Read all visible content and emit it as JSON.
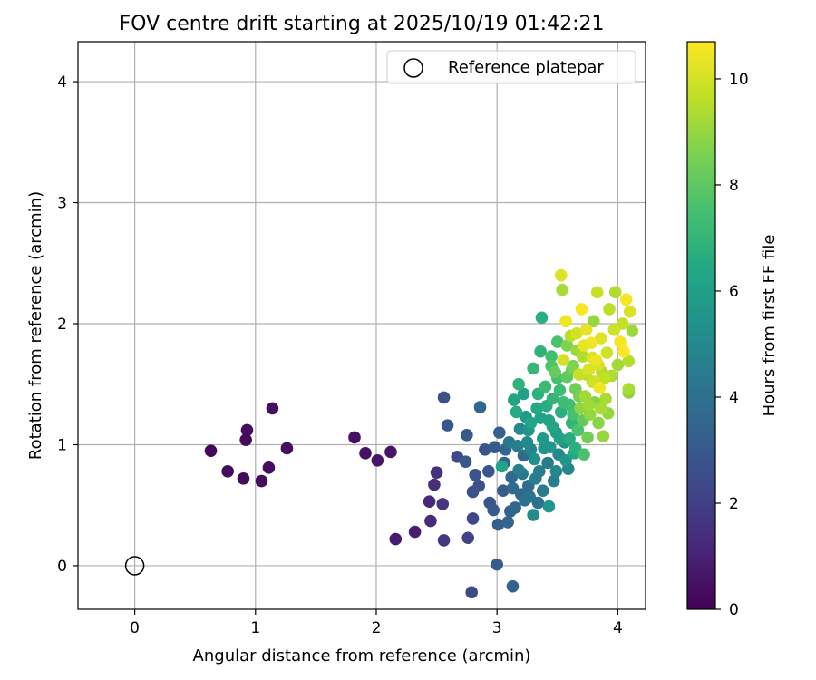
{
  "chart_data": {
    "type": "scatter",
    "title": "FOV centre drift starting at 2025/10/19 01:42:21",
    "xlabel": "Angular distance from reference (arcmin)",
    "ylabel": "Rotation from reference (arcmin)",
    "xlim": [
      -0.47,
      4.23
    ],
    "ylim": [
      -0.36,
      4.33
    ],
    "xticks": [
      0,
      1,
      2,
      3,
      4
    ],
    "yticks": [
      0,
      1,
      2,
      3,
      4
    ],
    "grid": true,
    "legend": {
      "position": "top-right",
      "entries": [
        "Reference platepar"
      ]
    },
    "reference_point": {
      "x": 0,
      "y": 0,
      "label": "Reference platepar"
    },
    "colorbar": {
      "label": "Hours from first FF file",
      "range": [
        0,
        10.7
      ],
      "ticks": [
        0,
        2,
        4,
        6,
        8,
        10
      ],
      "colormap": "viridis"
    },
    "points": [
      {
        "x": 0.63,
        "y": 0.95,
        "c": 0.2
      },
      {
        "x": 0.77,
        "y": 0.78,
        "c": 0.3
      },
      {
        "x": 0.9,
        "y": 0.72,
        "c": 0.3
      },
      {
        "x": 0.92,
        "y": 1.04,
        "c": 0.2
      },
      {
        "x": 0.93,
        "y": 1.12,
        "c": 0.3
      },
      {
        "x": 1.05,
        "y": 0.7,
        "c": 0.3
      },
      {
        "x": 1.11,
        "y": 0.81,
        "c": 0.4
      },
      {
        "x": 1.14,
        "y": 1.3,
        "c": 0.4
      },
      {
        "x": 1.26,
        "y": 0.97,
        "c": 0.4
      },
      {
        "x": 1.82,
        "y": 1.06,
        "c": 0.5
      },
      {
        "x": 1.91,
        "y": 0.93,
        "c": 0.5
      },
      {
        "x": 2.01,
        "y": 0.87,
        "c": 0.6
      },
      {
        "x": 2.12,
        "y": 0.94,
        "c": 0.6
      },
      {
        "x": 2.16,
        "y": 0.22,
        "c": 0.8
      },
      {
        "x": 2.32,
        "y": 0.28,
        "c": 0.9
      },
      {
        "x": 2.44,
        "y": 0.53,
        "c": 1.2
      },
      {
        "x": 2.45,
        "y": 0.37,
        "c": 1.3
      },
      {
        "x": 2.48,
        "y": 0.67,
        "c": 1.4
      },
      {
        "x": 2.5,
        "y": 0.77,
        "c": 1.5
      },
      {
        "x": 2.55,
        "y": 0.51,
        "c": 1.6
      },
      {
        "x": 2.56,
        "y": 0.21,
        "c": 1.7
      },
      {
        "x": 2.56,
        "y": 1.39,
        "c": 2.6
      },
      {
        "x": 2.59,
        "y": 1.16,
        "c": 2.9
      },
      {
        "x": 2.67,
        "y": 0.9,
        "c": 2.4
      },
      {
        "x": 2.76,
        "y": 0.23,
        "c": 2.1
      },
      {
        "x": 2.8,
        "y": 0.39,
        "c": 2.2
      },
      {
        "x": 2.79,
        "y": -0.22,
        "c": 2.3
      },
      {
        "x": 2.86,
        "y": 1.31,
        "c": 3.5
      },
      {
        "x": 3.0,
        "y": 0.01,
        "c": 3.1
      },
      {
        "x": 3.13,
        "y": -0.17,
        "c": 3.3
      },
      {
        "x": 2.8,
        "y": 0.61,
        "c": 2.6
      },
      {
        "x": 2.82,
        "y": 0.75,
        "c": 2.8
      },
      {
        "x": 2.85,
        "y": 0.66,
        "c": 2.7
      },
      {
        "x": 2.74,
        "y": 0.86,
        "c": 2.9
      },
      {
        "x": 2.75,
        "y": 1.08,
        "c": 3.0
      },
      {
        "x": 2.9,
        "y": 0.96,
        "c": 2.8
      },
      {
        "x": 2.94,
        "y": 0.52,
        "c": 2.9
      },
      {
        "x": 2.97,
        "y": 0.46,
        "c": 3.0
      },
      {
        "x": 3.01,
        "y": 0.34,
        "c": 3.2
      },
      {
        "x": 3.05,
        "y": 0.62,
        "c": 3.1
      },
      {
        "x": 3.02,
        "y": 1.1,
        "c": 3.3
      },
      {
        "x": 3.06,
        "y": 0.85,
        "c": 3.4
      },
      {
        "x": 3.09,
        "y": 0.36,
        "c": 3.5
      },
      {
        "x": 3.12,
        "y": 0.73,
        "c": 3.6
      },
      {
        "x": 3.15,
        "y": 0.48,
        "c": 3.5
      },
      {
        "x": 3.2,
        "y": 0.59,
        "c": 3.6
      },
      {
        "x": 3.22,
        "y": 0.91,
        "c": 3.7
      },
      {
        "x": 3.26,
        "y": 0.66,
        "c": 3.8
      },
      {
        "x": 3.3,
        "y": 0.42,
        "c": 5.2
      },
      {
        "x": 3.34,
        "y": 0.52,
        "c": 4.0
      },
      {
        "x": 3.43,
        "y": 0.49,
        "c": 5.5
      },
      {
        "x": 3.04,
        "y": 0.82,
        "c": 6.2
      },
      {
        "x": 3.16,
        "y": 1.27,
        "c": 6.5
      },
      {
        "x": 3.18,
        "y": 1.5,
        "c": 6.9
      },
      {
        "x": 3.22,
        "y": 1.42,
        "c": 6.0
      },
      {
        "x": 3.26,
        "y": 1.12,
        "c": 5.5
      },
      {
        "x": 3.28,
        "y": 0.96,
        "c": 4.8
      },
      {
        "x": 3.3,
        "y": 1.63,
        "c": 7.1
      },
      {
        "x": 3.33,
        "y": 1.3,
        "c": 6.4
      },
      {
        "x": 3.35,
        "y": 0.78,
        "c": 4.6
      },
      {
        "x": 3.36,
        "y": 1.77,
        "c": 6.9
      },
      {
        "x": 3.37,
        "y": 2.05,
        "c": 6.7
      },
      {
        "x": 3.38,
        "y": 1.05,
        "c": 5.8
      },
      {
        "x": 3.4,
        "y": 1.48,
        "c": 7.2
      },
      {
        "x": 3.42,
        "y": 0.85,
        "c": 4.4
      },
      {
        "x": 3.43,
        "y": 1.2,
        "c": 6.2
      },
      {
        "x": 3.45,
        "y": 1.73,
        "c": 7.4
      },
      {
        "x": 3.46,
        "y": 1.38,
        "c": 7.0
      },
      {
        "x": 3.47,
        "y": 0.7,
        "c": 4.5
      },
      {
        "x": 3.48,
        "y": 1.6,
        "c": 8.2
      },
      {
        "x": 3.49,
        "y": 1.1,
        "c": 5.9
      },
      {
        "x": 3.5,
        "y": 1.85,
        "c": 7.6
      },
      {
        "x": 3.51,
        "y": 0.92,
        "c": 5.0
      },
      {
        "x": 3.52,
        "y": 1.45,
        "c": 7.3
      },
      {
        "x": 3.53,
        "y": 1.27,
        "c": 6.7
      },
      {
        "x": 3.53,
        "y": 2.4,
        "c": 10.2
      },
      {
        "x": 3.54,
        "y": 2.28,
        "c": 9.3
      },
      {
        "x": 3.55,
        "y": 1.7,
        "c": 10.0
      },
      {
        "x": 3.56,
        "y": 1.02,
        "c": 5.5
      },
      {
        "x": 3.57,
        "y": 2.02,
        "c": 10.5
      },
      {
        "x": 3.58,
        "y": 1.56,
        "c": 8.0
      },
      {
        "x": 3.59,
        "y": 0.8,
        "c": 4.9
      },
      {
        "x": 3.6,
        "y": 1.33,
        "c": 7.4
      },
      {
        "x": 3.61,
        "y": 1.9,
        "c": 9.6
      },
      {
        "x": 3.62,
        "y": 1.18,
        "c": 7.0
      },
      {
        "x": 3.63,
        "y": 1.65,
        "c": 8.6
      },
      {
        "x": 3.64,
        "y": 0.93,
        "c": 6.4
      },
      {
        "x": 3.65,
        "y": 1.46,
        "c": 8.3
      },
      {
        "x": 3.66,
        "y": 1.78,
        "c": 9.1
      },
      {
        "x": 3.67,
        "y": 1.12,
        "c": 7.6
      },
      {
        "x": 3.68,
        "y": 1.58,
        "c": 9.8
      },
      {
        "x": 3.69,
        "y": 1.3,
        "c": 8.8
      },
      {
        "x": 3.7,
        "y": 2.12,
        "c": 10.6
      },
      {
        "x": 3.71,
        "y": 1.73,
        "c": 9.4
      },
      {
        "x": 3.72,
        "y": 0.92,
        "c": 7.6
      },
      {
        "x": 3.73,
        "y": 1.4,
        "c": 9.2
      },
      {
        "x": 3.74,
        "y": 1.95,
        "c": 10.3
      },
      {
        "x": 3.75,
        "y": 1.06,
        "c": 8.4
      },
      {
        "x": 3.76,
        "y": 1.62,
        "c": 10.1
      },
      {
        "x": 3.77,
        "y": 1.25,
        "c": 9.0
      },
      {
        "x": 3.78,
        "y": 1.84,
        "c": 10.5
      },
      {
        "x": 3.79,
        "y": 1.52,
        "c": 9.7
      },
      {
        "x": 3.8,
        "y": 2.02,
        "c": 9.0
      },
      {
        "x": 3.81,
        "y": 1.35,
        "c": 8.7
      },
      {
        "x": 3.82,
        "y": 1.7,
        "c": 10.4
      },
      {
        "x": 3.83,
        "y": 2.26,
        "c": 9.8
      },
      {
        "x": 3.84,
        "y": 1.18,
        "c": 8.8
      },
      {
        "x": 3.85,
        "y": 1.47,
        "c": 10.5
      },
      {
        "x": 3.86,
        "y": 1.88,
        "c": 10.2
      },
      {
        "x": 3.87,
        "y": 1.6,
        "c": 9.5
      },
      {
        "x": 3.88,
        "y": 1.07,
        "c": 9.0
      },
      {
        "x": 3.9,
        "y": 1.38,
        "c": 9.3
      },
      {
        "x": 3.91,
        "y": 1.76,
        "c": 9.9
      },
      {
        "x": 3.93,
        "y": 2.12,
        "c": 9.6
      },
      {
        "x": 3.95,
        "y": 1.57,
        "c": 9.4
      },
      {
        "x": 3.97,
        "y": 1.95,
        "c": 9.9
      },
      {
        "x": 3.98,
        "y": 2.26,
        "c": 9.4
      },
      {
        "x": 4.0,
        "y": 1.66,
        "c": 9.2
      },
      {
        "x": 4.02,
        "y": 1.85,
        "c": 10.6
      },
      {
        "x": 4.04,
        "y": 2.0,
        "c": 9.7
      },
      {
        "x": 4.05,
        "y": 1.77,
        "c": 10.7
      },
      {
        "x": 4.07,
        "y": 2.2,
        "c": 10.6
      },
      {
        "x": 4.09,
        "y": 1.46,
        "c": 9.3
      },
      {
        "x": 4.1,
        "y": 2.1,
        "c": 10.1
      },
      {
        "x": 4.12,
        "y": 1.94,
        "c": 9.1
      },
      {
        "x": 4.09,
        "y": 1.69,
        "c": 9.5
      },
      {
        "x": 4.09,
        "y": 1.43,
        "c": 8.9
      },
      {
        "x": 3.28,
        "y": 1.18,
        "c": 6.3
      },
      {
        "x": 3.31,
        "y": 0.88,
        "c": 5.3
      },
      {
        "x": 3.34,
        "y": 1.42,
        "c": 6.8
      },
      {
        "x": 3.36,
        "y": 1.22,
        "c": 6.1
      },
      {
        "x": 3.39,
        "y": 0.97,
        "c": 5.4
      },
      {
        "x": 3.41,
        "y": 1.32,
        "c": 6.6
      },
      {
        "x": 3.44,
        "y": 0.98,
        "c": 5.6
      },
      {
        "x": 3.46,
        "y": 1.15,
        "c": 6.3
      },
      {
        "x": 3.49,
        "y": 0.78,
        "c": 4.9
      },
      {
        "x": 3.52,
        "y": 1.05,
        "c": 6.1
      },
      {
        "x": 3.55,
        "y": 1.35,
        "c": 7.3
      },
      {
        "x": 3.57,
        "y": 0.87,
        "c": 5.6
      },
      {
        "x": 3.6,
        "y": 1.05,
        "c": 6.5
      },
      {
        "x": 3.63,
        "y": 1.25,
        "c": 7.5
      },
      {
        "x": 3.65,
        "y": 0.97,
        "c": 6.8
      },
      {
        "x": 3.68,
        "y": 1.4,
        "c": 8.5
      },
      {
        "x": 3.71,
        "y": 1.2,
        "c": 8.1
      },
      {
        "x": 3.74,
        "y": 1.58,
        "c": 9.6
      },
      {
        "x": 3.76,
        "y": 1.33,
        "c": 9.2
      },
      {
        "x": 3.79,
        "y": 1.72,
        "c": 10.2
      },
      {
        "x": 3.81,
        "y": 1.52,
        "c": 9.9
      },
      {
        "x": 3.84,
        "y": 1.66,
        "c": 10.0
      },
      {
        "x": 3.86,
        "y": 1.3,
        "c": 9.3
      },
      {
        "x": 3.89,
        "y": 1.55,
        "c": 9.7
      },
      {
        "x": 3.92,
        "y": 1.26,
        "c": 9.0
      },
      {
        "x": 3.13,
        "y": 0.64,
        "c": 3.7
      },
      {
        "x": 3.17,
        "y": 0.99,
        "c": 4.6
      },
      {
        "x": 3.21,
        "y": 0.76,
        "c": 4.3
      },
      {
        "x": 3.24,
        "y": 1.23,
        "c": 5.7
      },
      {
        "x": 3.27,
        "y": 0.57,
        "c": 4.1
      },
      {
        "x": 3.1,
        "y": 1.02,
        "c": 4.3
      },
      {
        "x": 3.14,
        "y": 1.37,
        "c": 6.2
      },
      {
        "x": 3.19,
        "y": 1.13,
        "c": 5.0
      },
      {
        "x": 3.23,
        "y": 0.54,
        "c": 4.0
      },
      {
        "x": 3.32,
        "y": 0.72,
        "c": 4.5
      },
      {
        "x": 3.38,
        "y": 0.62,
        "c": 4.4
      },
      {
        "x": 3.45,
        "y": 1.65,
        "c": 7.7
      },
      {
        "x": 3.5,
        "y": 1.55,
        "c": 7.5
      },
      {
        "x": 3.58,
        "y": 1.82,
        "c": 8.6
      },
      {
        "x": 3.62,
        "y": 1.62,
        "c": 8.3
      },
      {
        "x": 3.66,
        "y": 1.92,
        "c": 10.0
      },
      {
        "x": 3.72,
        "y": 1.82,
        "c": 10.3
      },
      {
        "x": 2.98,
        "y": 0.98,
        "c": 3.0
      },
      {
        "x": 2.93,
        "y": 0.78,
        "c": 2.8
      },
      {
        "x": 3.07,
        "y": 0.96,
        "c": 3.6
      },
      {
        "x": 3.11,
        "y": 0.45,
        "c": 3.4
      },
      {
        "x": 3.18,
        "y": 0.79,
        "c": 4.4
      },
      {
        "x": 3.25,
        "y": 1.02,
        "c": 5.1
      }
    ]
  }
}
